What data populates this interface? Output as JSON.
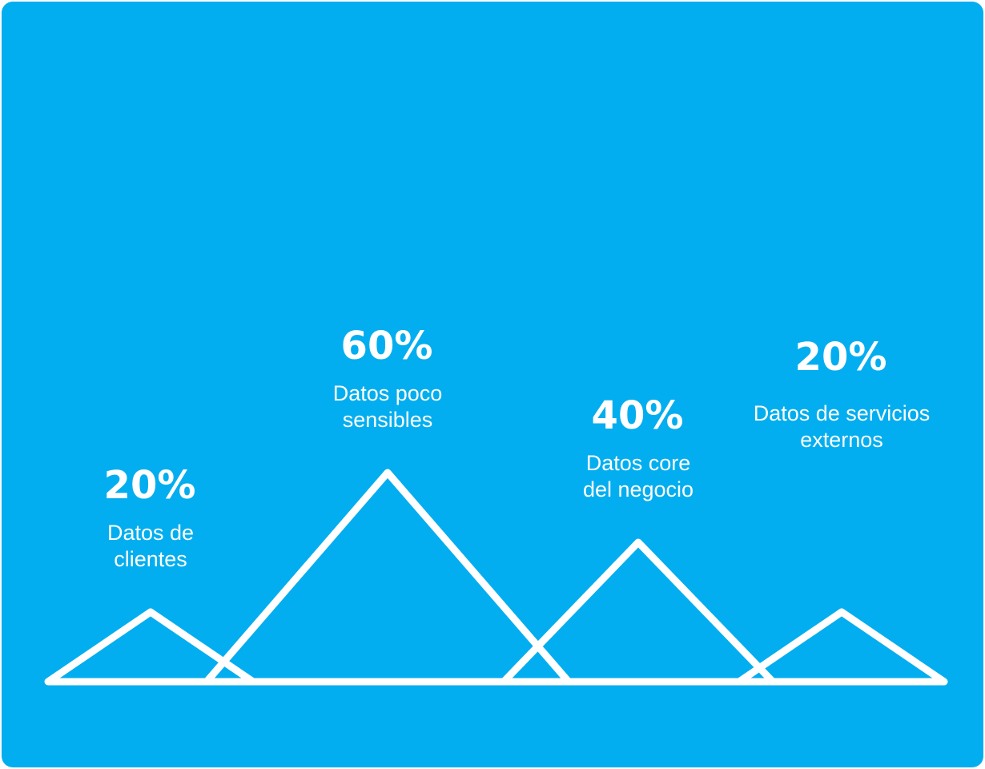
{
  "colors": {
    "background": "#02aeef",
    "stroke": "#ffffff",
    "text": "#ffffff"
  },
  "chart_data": {
    "type": "area",
    "unit": "%",
    "categories": [
      "Datos de clientes",
      "Datos poco sensibles",
      "Datos core del negocio",
      "Datos de servicios externos"
    ],
    "values": [
      20,
      60,
      40,
      20
    ],
    "items": [
      {
        "value_label": "20%",
        "label_lines": [
          "Datos de",
          "clientes"
        ]
      },
      {
        "value_label": "60%",
        "label_lines": [
          "Datos poco",
          "sensibles"
        ]
      },
      {
        "value_label": "40%",
        "label_lines": [
          "Datos core",
          "del negocio"
        ]
      },
      {
        "value_label": "20%",
        "label_lines": [
          "Datos de servicios",
          "externos"
        ]
      }
    ]
  }
}
